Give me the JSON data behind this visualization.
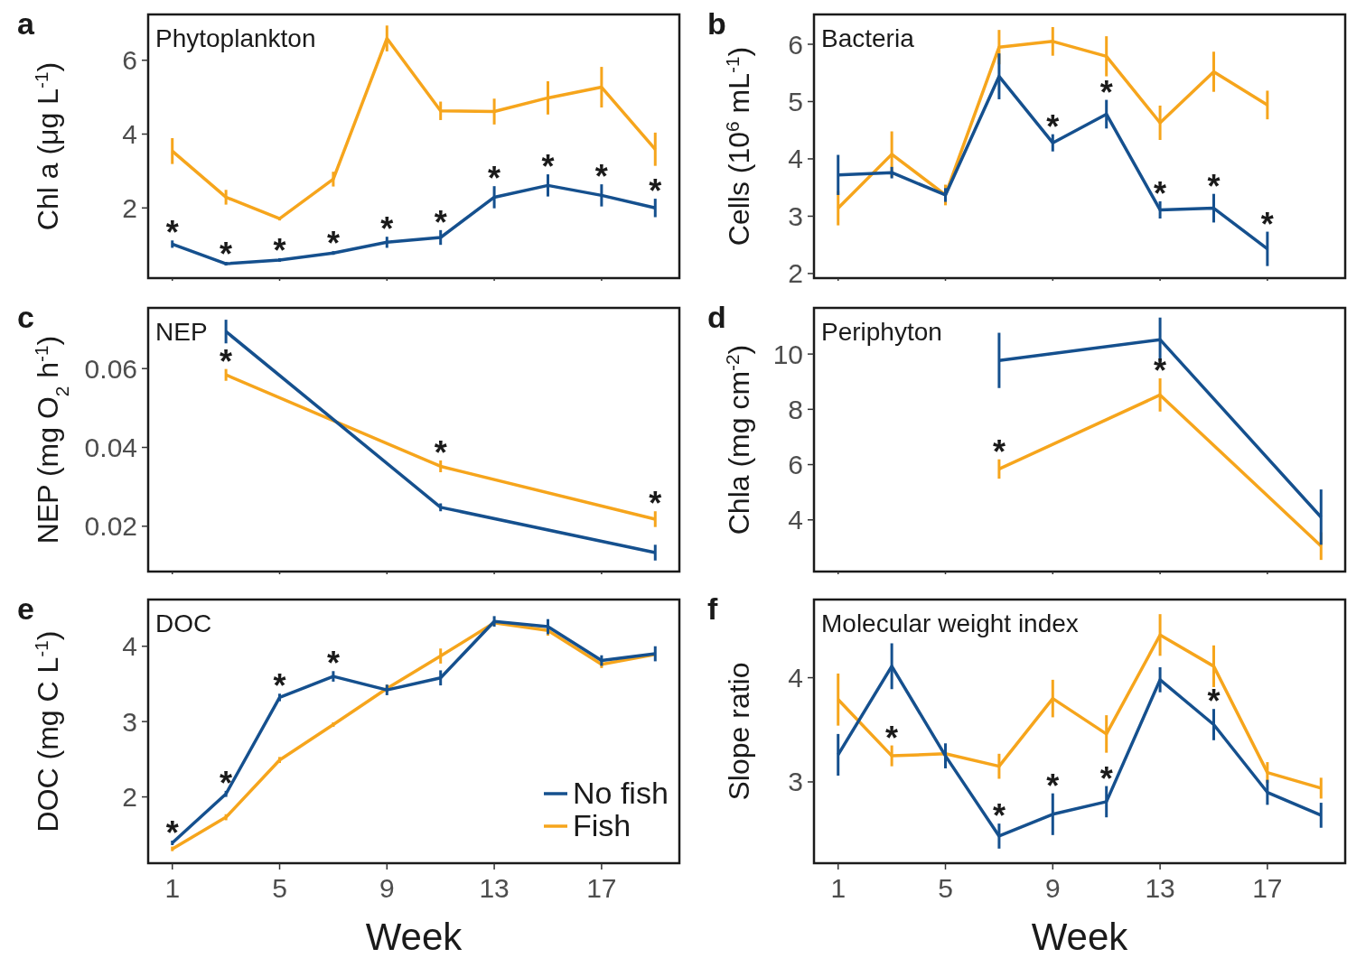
{
  "chart_data": [
    {
      "type": "line",
      "title": "Phytoplankton",
      "ylabel": "Chl a (μg L$^{-1}$)",
      "x": [
        1,
        3,
        5,
        7,
        9,
        11,
        13,
        15,
        17,
        19
      ],
      "xlim": [
        0.1,
        19.9
      ],
      "xticks": [
        1,
        5,
        9,
        13,
        17
      ],
      "ylim": [
        0.1,
        7.24
      ],
      "yticks": [
        2,
        4,
        6
      ],
      "tick_labels": "y",
      "series": [
        {
          "color": "#15508e",
          "values": [
            1.02,
            0.49,
            0.59,
            0.78,
            1.07,
            1.2,
            2.29,
            2.61,
            2.34,
            2.0
          ],
          "errors": [
            0.1,
            0.05,
            0.05,
            0.05,
            0.15,
            0.2,
            0.3,
            0.3,
            0.3,
            0.25
          ]
        },
        {
          "color": "#f6a51c",
          "values": [
            3.54,
            2.29,
            1.71,
            2.78,
            6.59,
            4.63,
            4.61,
            4.98,
            5.27,
            3.59
          ],
          "errors": [
            0.35,
            0.2,
            0.05,
            0.2,
            0.35,
            0.25,
            0.35,
            0.45,
            0.55,
            0.45
          ]
        }
      ],
      "annotations": [
        "a",
        {
          "text": "*",
          "x": 1,
          "y": 1.02
        },
        {
          "text": "*",
          "x": 3,
          "y": 0.49
        },
        {
          "text": "*",
          "x": 5,
          "y": 0.59
        },
        {
          "text": "*",
          "x": 7,
          "y": 0.78
        },
        {
          "text": "*",
          "x": 9,
          "y": 1.07
        },
        {
          "text": "*",
          "x": 11,
          "y": 1.2
        },
        {
          "text": "*",
          "x": 13,
          "y": 2.29
        },
        {
          "text": "*",
          "x": 15,
          "y": 2.61
        },
        {
          "text": "*",
          "x": 17,
          "y": 2.34
        },
        {
          "text": "*",
          "x": 19,
          "y": 2.0
        }
      ]
    },
    {
      "type": "line",
      "title": "Bacteria",
      "ylabel": "Cells (10$^{6}$ mL$^{-1}$)",
      "x": [
        1,
        3,
        5,
        7,
        9,
        11,
        13,
        15,
        17
      ],
      "xlim": [
        0.1,
        19.9
      ],
      "xticks": [
        1,
        5,
        9,
        13,
        17
      ],
      "ylim": [
        1.92,
        6.52
      ],
      "yticks": [
        2,
        3,
        4,
        5,
        6
      ],
      "tick_labels": "y",
      "series": [
        {
          "color": "#15508e",
          "values": [
            3.72,
            3.76,
            3.37,
            5.44,
            4.28,
            4.78,
            3.11,
            3.14,
            2.43
          ],
          "errors": [
            0.35,
            0.1,
            0.12,
            0.4,
            0.15,
            0.25,
            0.15,
            0.25,
            0.3
          ]
        },
        {
          "color": "#f6a51c",
          "values": [
            3.14,
            4.08,
            3.37,
            5.95,
            6.05,
            5.79,
            4.63,
            5.52,
            4.94
          ],
          "errors": [
            0.3,
            0.4,
            0.18,
            0.3,
            0.25,
            0.35,
            0.3,
            0.35,
            0.25
          ]
        }
      ],
      "annotations": [
        "b",
        {
          "text": "*",
          "x": 9,
          "y": 4.28
        },
        {
          "text": "*",
          "x": 11,
          "y": 4.78
        },
        {
          "text": "*",
          "x": 13,
          "y": 3.11
        },
        {
          "text": "*",
          "x": 15,
          "y": 3.14
        },
        {
          "text": "*",
          "x": 17,
          "y": 2.43
        }
      ]
    },
    {
      "type": "line",
      "title": "NEP",
      "ylabel": "NEP (mg O$_{2}$ h$^{-1}$)",
      "x": [
        3,
        11,
        19
      ],
      "xlim": [
        0.1,
        19.9
      ],
      "xticks": [
        1,
        5,
        9,
        13,
        17
      ],
      "ylim": [
        0.0085,
        0.0754
      ],
      "yticks": [
        {
          "value": 0.02,
          "label": "0.02"
        },
        {
          "value": 0.04,
          "label": "0.04"
        },
        {
          "value": 0.06,
          "label": "0.06"
        }
      ],
      "tick_labels": "y",
      "series": [
        {
          "color": "#15508e",
          "values": [
            0.0694,
            0.0248,
            0.0133
          ],
          "errors": [
            0.003,
            0.001,
            0.002
          ]
        },
        {
          "color": "#f6a51c",
          "values": [
            0.0584,
            0.0352,
            0.0218
          ],
          "errors": [
            0.0015,
            0.0015,
            0.002
          ]
        }
      ],
      "annotations": [
        "c",
        {
          "text": "*",
          "x": 3,
          "y": 0.0584
        },
        {
          "text": "*",
          "x": 11,
          "y": 0.0352
        },
        {
          "text": "*",
          "x": 19,
          "y": 0.0218
        }
      ]
    },
    {
      "type": "line",
      "title": "Periphyton",
      "ylabel": "Chla (mg cm$^{-2}$)",
      "x": [
        7,
        13,
        19
      ],
      "xlim": [
        0.1,
        19.9
      ],
      "xticks": [
        1,
        5,
        9,
        13,
        17
      ],
      "ylim": [
        2.13,
        11.67
      ],
      "yticks": [
        4,
        6,
        8,
        10
      ],
      "tick_labels": "y",
      "series": [
        {
          "color": "#15508e",
          "values": [
            9.77,
            10.52,
            4.1
          ],
          "errors": [
            1.0,
            0.8,
            1.0
          ]
        },
        {
          "color": "#f6a51c",
          "values": [
            5.84,
            8.52,
            3.05
          ],
          "errors": [
            0.35,
            0.6,
            0.5
          ]
        }
      ],
      "annotations": [
        "d",
        {
          "text": "*",
          "x": 7,
          "y": 5.84
        },
        {
          "text": "*",
          "x": 13,
          "y": 8.52
        }
      ]
    },
    {
      "type": "line",
      "title": "DOC",
      "xlabel": "Week",
      "ylabel": "DOC (mg C L$^{-1}$)",
      "x": [
        1,
        3,
        5,
        7,
        9,
        11,
        13,
        15,
        17,
        19
      ],
      "xlim": [
        0.1,
        19.9
      ],
      "xticks": [
        1,
        5,
        9,
        13,
        17
      ],
      "ylim": [
        1.12,
        4.62
      ],
      "yticks": [
        2,
        3,
        4
      ],
      "legend": "bottom right",
      "series": [
        {
          "name": "No fish",
          "color": "#15508e",
          "values": [
            1.39,
            2.04,
            3.32,
            3.6,
            3.42,
            3.58,
            4.33,
            4.26,
            3.81,
            3.9
          ],
          "errors": [
            0.03,
            0.04,
            0.05,
            0.07,
            0.07,
            0.1,
            0.07,
            0.1,
            0.07,
            0.1
          ]
        },
        {
          "name": "Fish",
          "color": "#f6a51c",
          "values": [
            1.31,
            1.73,
            2.49,
            2.96,
            3.44,
            3.87,
            4.31,
            4.21,
            3.76,
            3.89
          ],
          "errors": [
            0.03,
            0.04,
            0.04,
            0.03,
            0.05,
            0.1,
            null,
            0.07,
            0.05,
            null
          ]
        }
      ],
      "annotations": [
        "e",
        {
          "text": "*",
          "x": 1,
          "y": 1.39
        },
        {
          "text": "*",
          "x": 3,
          "y": 2.04
        },
        {
          "text": "*",
          "x": 5,
          "y": 3.32
        },
        {
          "text": "*",
          "x": 7,
          "y": 3.6
        }
      ]
    },
    {
      "type": "line",
      "title": "Molecular weight index",
      "xlabel": "Week",
      "ylabel": "Slope ratio",
      "x": [
        1,
        3,
        5,
        7,
        9,
        11,
        13,
        15,
        17,
        19
      ],
      "xlim": [
        0.1,
        19.9
      ],
      "xticks": [
        1,
        5,
        9,
        13,
        17
      ],
      "ylim": [
        2.22,
        4.75
      ],
      "yticks": [
        3,
        4
      ],
      "series": [
        {
          "color": "#15508e",
          "values": [
            3.26,
            4.11,
            3.25,
            2.48,
            2.69,
            2.81,
            3.98,
            3.55,
            2.9,
            2.68
          ],
          "errors": [
            0.2,
            0.22,
            0.12,
            0.12,
            0.2,
            0.15,
            0.12,
            0.15,
            0.12,
            0.12
          ]
        },
        {
          "color": "#f6a51c",
          "values": [
            3.79,
            3.25,
            3.27,
            3.15,
            3.8,
            3.46,
            4.41,
            4.11,
            3.09,
            2.94
          ],
          "errors": [
            0.25,
            0.1,
            null,
            0.12,
            0.18,
            0.18,
            0.2,
            0.2,
            0.1,
            0.1
          ]
        }
      ],
      "annotations": [
        "f",
        {
          "text": "*",
          "x": 3,
          "y": 3.25
        },
        {
          "text": "*",
          "x": 7,
          "y": 2.48
        },
        {
          "text": "*",
          "x": 9,
          "y": 2.69
        },
        {
          "text": "*",
          "x": 11,
          "y": 2.81
        },
        {
          "text": "*",
          "x": 15,
          "y": 3.55
        }
      ]
    }
  ]
}
